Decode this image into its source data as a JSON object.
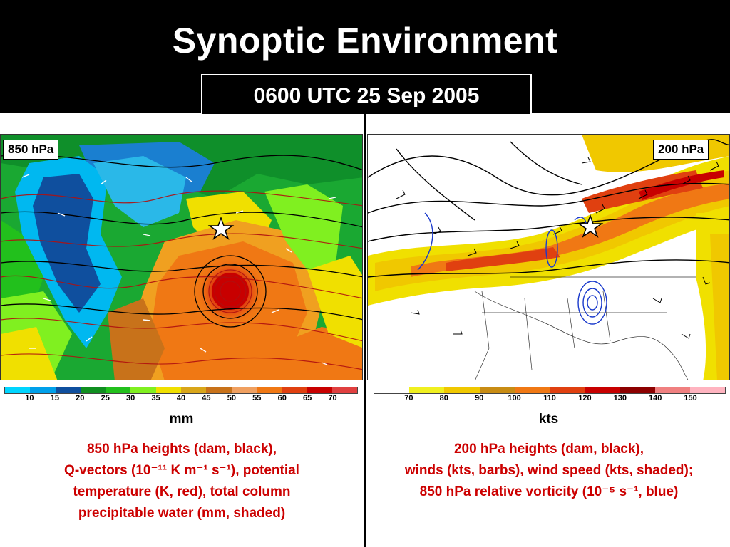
{
  "title": "Synoptic Environment",
  "date": "0600 UTC 25 Sep 2005",
  "left": {
    "level": "850 hPa",
    "unit": "mm",
    "colorbar": {
      "colors": [
        "#00d5ff",
        "#00a0ea",
        "#0f4f9e",
        "#108f20",
        "#22c01c",
        "#80f020",
        "#f0e000",
        "#d9a61a",
        "#c8721a",
        "#f0a060",
        "#f07814",
        "#e04010",
        "#c80000",
        "#e04040"
      ],
      "labels": [
        "10",
        "15",
        "20",
        "25",
        "30",
        "35",
        "40",
        "45",
        "50",
        "55",
        "60",
        "65",
        "70"
      ]
    },
    "caption": [
      "850 hPa heights (dam, black),",
      "Q-vectors (10⁻¹¹ K m⁻¹ s⁻¹), potential",
      "temperature (K, red), total column",
      "precipitable water (mm, shaded)"
    ]
  },
  "right": {
    "level": "200 hPa",
    "unit": "kts",
    "colorbar": {
      "colors": [
        "#ffffff",
        "#f0f020",
        "#f0c800",
        "#c88c14",
        "#f07814",
        "#e04010",
        "#c80000",
        "#8c0000",
        "#f08080",
        "#ffb4c0"
      ],
      "labels": [
        "70",
        "80",
        "90",
        "100",
        "110",
        "120",
        "130",
        "140",
        "150"
      ]
    },
    "caption": [
      "200 hPa heights (dam, black),",
      "winds (kts, barbs), wind speed (kts, shaded);",
      "850 hPa relative vorticity (10⁻⁵ s⁻¹, blue)"
    ]
  },
  "map_icons": [
    "star-icon"
  ]
}
